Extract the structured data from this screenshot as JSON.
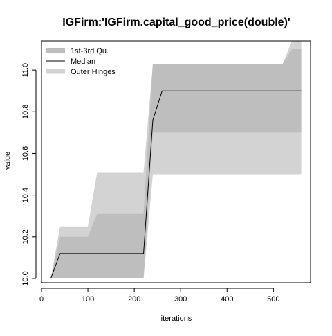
{
  "chart_data": {
    "type": "area",
    "title": "IGFirm:'IGFirm.capital_good_price(double)'",
    "xlabel": "iterations",
    "ylabel": "value",
    "xlim": [
      0,
      580
    ],
    "ylim": [
      9.98,
      11.14
    ],
    "x_ticks": [
      0,
      100,
      200,
      300,
      400,
      500
    ],
    "y_ticks": [
      10.0,
      10.2,
      10.4,
      10.6,
      10.8,
      11.0
    ],
    "x_tick_labels": [
      "0",
      "100",
      "200",
      "300",
      "400",
      "500"
    ],
    "y_tick_labels": [
      "10.0",
      "10.2",
      "10.4",
      "10.6",
      "10.8",
      "11.0"
    ],
    "legend_position": "top-left",
    "legend": [
      {
        "label": "1st-3rd Qu.",
        "kind": "band",
        "color": "#bebebe"
      },
      {
        "label": "Median",
        "kind": "line",
        "color": "#000000"
      },
      {
        "label": "Outer Hinges",
        "kind": "band",
        "color": "#d3d3d3"
      }
    ],
    "x": [
      20,
      40,
      100,
      120,
      220,
      240,
      260,
      520,
      540,
      560
    ],
    "series": [
      {
        "name": "Outer Hinges",
        "role": "outer",
        "lower": [
          10.0,
          10.0,
          10.0,
          10.0,
          10.0,
          10.5,
          10.5,
          10.5,
          10.5,
          10.5
        ],
        "upper": [
          10.0,
          10.25,
          10.25,
          10.51,
          10.51,
          11.03,
          11.03,
          11.03,
          11.14,
          11.14
        ]
      },
      {
        "name": "1st-3rd Qu.",
        "role": "iqr",
        "lower": [
          10.0,
          10.0,
          10.0,
          10.0,
          10.0,
          10.7,
          10.7,
          10.7,
          10.7,
          10.7
        ],
        "upper": [
          10.0,
          10.2,
          10.2,
          10.31,
          10.31,
          11.03,
          11.03,
          11.03,
          11.1,
          11.1
        ]
      },
      {
        "name": "Median",
        "role": "median",
        "values": [
          10.0,
          10.12,
          10.12,
          10.12,
          10.12,
          10.76,
          10.9,
          10.9,
          10.9,
          10.9
        ]
      }
    ],
    "colors": {
      "outer": "#d3d3d3",
      "iqr": "#bebebe",
      "median": "#000000"
    },
    "grid": false
  }
}
